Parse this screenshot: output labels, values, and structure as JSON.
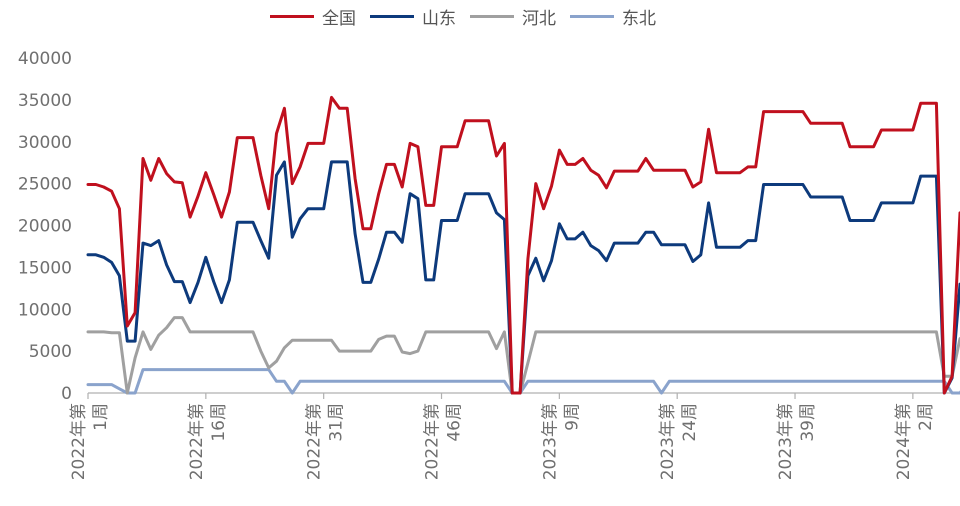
{
  "chart_data": {
    "type": "line",
    "title": "",
    "xlabel": "",
    "ylabel": "",
    "ylim": [
      0,
      40000
    ],
    "yticks": [
      0,
      5000,
      10000,
      15000,
      20000,
      25000,
      30000,
      35000,
      40000
    ],
    "legend_position": "top",
    "grid": false,
    "x_tick_labels": [
      {
        "index": 0,
        "label": "2022年第1周"
      },
      {
        "index": 15,
        "label": "2022年第16周"
      },
      {
        "index": 30,
        "label": "2022年第31周"
      },
      {
        "index": 45,
        "label": "2022年第46周"
      },
      {
        "index": 60,
        "label": "2023年第9周"
      },
      {
        "index": 75,
        "label": "2023年第24周"
      },
      {
        "index": 90,
        "label": "2023年第39周"
      },
      {
        "index": 105,
        "label": "2024年第2周"
      }
    ],
    "series": [
      {
        "name": "全国",
        "color": "#c0101e",
        "values": [
          24900,
          24900,
          24600,
          24100,
          22000,
          8000,
          9600,
          28000,
          25400,
          28000,
          26200,
          25200,
          25100,
          21000,
          23500,
          26300,
          23700,
          21000,
          24000,
          30500,
          30500,
          30500,
          26000,
          22000,
          31000,
          34000,
          25000,
          27000,
          29800,
          29800,
          29800,
          35300,
          34000,
          34000,
          25600,
          19600,
          19600,
          23800,
          27300,
          27300,
          24600,
          29800,
          29400,
          22400,
          22400,
          29400,
          29400,
          29400,
          32500,
          32500,
          32500,
          32500,
          28300,
          29800,
          0,
          0,
          16000,
          25000,
          22000,
          24700,
          29000,
          27300,
          27300,
          28000,
          26600,
          26000,
          24500,
          26500,
          26500,
          26500,
          26500,
          28000,
          26600,
          26600,
          26600,
          26600,
          26600,
          24600,
          25200,
          31500,
          26300,
          26300,
          26300,
          26300,
          27000,
          27000,
          33600,
          33600,
          33600,
          33600,
          33600,
          33600,
          32200,
          32200,
          32200,
          32200,
          32200,
          29400,
          29400,
          29400,
          29400,
          31400,
          31400,
          31400,
          31400,
          31400,
          34600,
          34600,
          34600,
          0,
          2000,
          21500
        ]
      },
      {
        "name": "山东",
        "color": "#0d3a7c",
        "values": [
          16500,
          16500,
          16200,
          15600,
          14000,
          6200,
          6200,
          17900,
          17600,
          18200,
          15300,
          13300,
          13300,
          10800,
          13200,
          16200,
          13300,
          10800,
          13500,
          20400,
          20400,
          20400,
          18200,
          16100,
          26000,
          27600,
          18600,
          20800,
          22000,
          22000,
          22000,
          27600,
          27600,
          27600,
          19000,
          13200,
          13200,
          16000,
          19200,
          19200,
          18000,
          23800,
          23200,
          13500,
          13500,
          20600,
          20600,
          20600,
          23800,
          23800,
          23800,
          23800,
          21500,
          20700,
          0,
          0,
          14000,
          16100,
          13400,
          15800,
          20200,
          18400,
          18400,
          19200,
          17600,
          17000,
          15800,
          17900,
          17900,
          17900,
          17900,
          19200,
          19200,
          17700,
          17700,
          17700,
          17700,
          15700,
          16500,
          22700,
          17400,
          17400,
          17400,
          17400,
          18200,
          18200,
          24900,
          24900,
          24900,
          24900,
          24900,
          24900,
          23400,
          23400,
          23400,
          23400,
          23400,
          20600,
          20600,
          20600,
          20600,
          22700,
          22700,
          22700,
          22700,
          22700,
          25900,
          25900,
          25900,
          0,
          1800,
          13000
        ]
      },
      {
        "name": "河北",
        "color": "#a0a0a0",
        "values": [
          7300,
          7300,
          7300,
          7200,
          7200,
          0,
          4200,
          7300,
          5200,
          6900,
          7800,
          9000,
          9000,
          7300,
          7300,
          7300,
          7300,
          7300,
          7300,
          7300,
          7300,
          7300,
          5000,
          3000,
          3800,
          5400,
          6300,
          6300,
          6300,
          6300,
          6300,
          6300,
          5000,
          5000,
          5000,
          5000,
          5000,
          6400,
          6800,
          6800,
          4900,
          4700,
          5000,
          7300,
          7300,
          7300,
          7300,
          7300,
          7300,
          7300,
          7300,
          7300,
          5300,
          7300,
          0,
          0,
          3600,
          7300,
          7300,
          7300,
          7300,
          7300,
          7300,
          7300,
          7300,
          7300,
          7300,
          7300,
          7300,
          7300,
          7300,
          7300,
          7300,
          7300,
          7300,
          7300,
          7300,
          7300,
          7300,
          7300,
          7300,
          7300,
          7300,
          7300,
          7300,
          7300,
          7300,
          7300,
          7300,
          7300,
          7300,
          7300,
          7300,
          7300,
          7300,
          7300,
          7300,
          7300,
          7300,
          7300,
          7300,
          7300,
          7300,
          7300,
          7300,
          7300,
          7300,
          7300,
          7300,
          2000,
          2000,
          6500
        ]
      },
      {
        "name": "东北",
        "color": "#8aa3cc",
        "values": [
          1000,
          1000,
          1000,
          1000,
          500,
          0,
          0,
          2800,
          2800,
          2800,
          2800,
          2800,
          2800,
          2800,
          2800,
          2800,
          2800,
          2800,
          2800,
          2800,
          2800,
          2800,
          2800,
          2800,
          1400,
          1400,
          0,
          1400,
          1400,
          1400,
          1400,
          1400,
          1400,
          1400,
          1400,
          1400,
          1400,
          1400,
          1400,
          1400,
          1400,
          1400,
          1400,
          1400,
          1400,
          1400,
          1400,
          1400,
          1400,
          1400,
          1400,
          1400,
          1400,
          1400,
          0,
          0,
          1400,
          1400,
          1400,
          1400,
          1400,
          1400,
          1400,
          1400,
          1400,
          1400,
          1400,
          1400,
          1400,
          1400,
          1400,
          1400,
          1400,
          0,
          1400,
          1400,
          1400,
          1400,
          1400,
          1400,
          1400,
          1400,
          1400,
          1400,
          1400,
          1400,
          1400,
          1400,
          1400,
          1400,
          1400,
          1400,
          1400,
          1400,
          1400,
          1400,
          1400,
          1400,
          1400,
          1400,
          1400,
          1400,
          1400,
          1400,
          1400,
          1400,
          1400,
          1400,
          1400,
          1400,
          0,
          0,
          1400
        ]
      }
    ]
  }
}
